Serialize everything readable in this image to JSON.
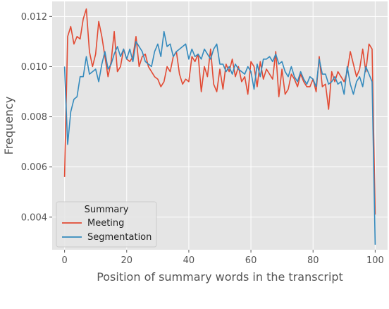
{
  "chart_data": {
    "type": "line",
    "xlabel": "Position of summary words in the transcript",
    "ylabel": "Frequency",
    "xlim": [
      -4,
      104
    ],
    "ylim": [
      0.0027,
      0.0126
    ],
    "xticks": [
      0,
      20,
      40,
      60,
      80,
      100
    ],
    "xtick_labels": [
      "0",
      "20",
      "40",
      "60",
      "80",
      "100"
    ],
    "yticks": [
      0.004,
      0.006,
      0.008,
      0.01,
      0.012
    ],
    "ytick_labels": [
      "0.004",
      "0.006",
      "0.008",
      "0.010",
      "0.012"
    ],
    "grid": true,
    "legend": {
      "title": "Summary",
      "position": "lower-left"
    },
    "background": "#e5e5e5",
    "grid_color": "#ffffff",
    "series": [
      {
        "name": "Meeting",
        "color": "#e24a33",
        "x": [
          0,
          1,
          2,
          3,
          4,
          5,
          6,
          7,
          8,
          9,
          10,
          11,
          12,
          13,
          14,
          15,
          16,
          17,
          18,
          19,
          20,
          21,
          22,
          23,
          24,
          25,
          26,
          27,
          28,
          29,
          30,
          31,
          32,
          33,
          34,
          35,
          36,
          37,
          38,
          39,
          40,
          41,
          42,
          43,
          44,
          45,
          46,
          47,
          48,
          49,
          50,
          51,
          52,
          53,
          54,
          55,
          56,
          57,
          58,
          59,
          60,
          61,
          62,
          63,
          64,
          65,
          66,
          67,
          68,
          69,
          70,
          71,
          72,
          73,
          74,
          75,
          76,
          77,
          78,
          79,
          80,
          81,
          82,
          83,
          84,
          85,
          86,
          87,
          88,
          89,
          90,
          91,
          92,
          93,
          94,
          95,
          96,
          97,
          98,
          99,
          100
        ],
        "values": [
          0.0056,
          0.0112,
          0.0116,
          0.0109,
          0.0112,
          0.0111,
          0.0119,
          0.0123,
          0.0106,
          0.01,
          0.0105,
          0.0118,
          0.0112,
          0.0104,
          0.0096,
          0.0102,
          0.0114,
          0.0098,
          0.01,
          0.0107,
          0.0103,
          0.0102,
          0.0104,
          0.0112,
          0.01,
          0.0104,
          0.0105,
          0.01,
          0.0098,
          0.0096,
          0.0095,
          0.0092,
          0.0094,
          0.01,
          0.0098,
          0.0104,
          0.0106,
          0.0097,
          0.0093,
          0.0095,
          0.0094,
          0.0104,
          0.0102,
          0.0105,
          0.009,
          0.01,
          0.0096,
          0.0107,
          0.0093,
          0.009,
          0.0099,
          0.0091,
          0.0101,
          0.0098,
          0.0103,
          0.0096,
          0.01,
          0.0094,
          0.0096,
          0.0089,
          0.0102,
          0.01,
          0.0092,
          0.0102,
          0.0095,
          0.0099,
          0.0097,
          0.0095,
          0.0106,
          0.0088,
          0.0099,
          0.0089,
          0.0091,
          0.0097,
          0.0095,
          0.0092,
          0.0097,
          0.0094,
          0.0092,
          0.0092,
          0.0095,
          0.009,
          0.0104,
          0.0092,
          0.0093,
          0.0083,
          0.0098,
          0.0094,
          0.0098,
          0.0096,
          0.0094,
          0.0098,
          0.0106,
          0.0101,
          0.0096,
          0.0099,
          0.0107,
          0.0098,
          0.0109,
          0.0107,
          0.0041
        ]
      },
      {
        "name": "Segmentation",
        "color": "#348abd",
        "x": [
          0,
          1,
          2,
          3,
          4,
          5,
          6,
          7,
          8,
          9,
          10,
          11,
          12,
          13,
          14,
          15,
          16,
          17,
          18,
          19,
          20,
          21,
          22,
          23,
          24,
          25,
          26,
          27,
          28,
          29,
          30,
          31,
          32,
          33,
          34,
          35,
          36,
          37,
          38,
          39,
          40,
          41,
          42,
          43,
          44,
          45,
          46,
          47,
          48,
          49,
          50,
          51,
          52,
          53,
          54,
          55,
          56,
          57,
          58,
          59,
          60,
          61,
          62,
          63,
          64,
          65,
          66,
          67,
          68,
          69,
          70,
          71,
          72,
          73,
          74,
          75,
          76,
          77,
          78,
          79,
          80,
          81,
          82,
          83,
          84,
          85,
          86,
          87,
          88,
          89,
          90,
          91,
          92,
          93,
          94,
          95,
          96,
          97,
          98,
          99,
          100
        ],
        "values": [
          0.01,
          0.0069,
          0.0082,
          0.0087,
          0.0088,
          0.0096,
          0.0096,
          0.0104,
          0.0097,
          0.0098,
          0.0099,
          0.0094,
          0.0101,
          0.0106,
          0.0099,
          0.0101,
          0.0105,
          0.0108,
          0.0104,
          0.0107,
          0.0103,
          0.0107,
          0.0102,
          0.011,
          0.0108,
          0.0106,
          0.0102,
          0.0101,
          0.01,
          0.0106,
          0.0109,
          0.0104,
          0.0114,
          0.0108,
          0.0109,
          0.0104,
          0.0106,
          0.0107,
          0.0108,
          0.0109,
          0.0103,
          0.0107,
          0.0104,
          0.0105,
          0.0103,
          0.0107,
          0.0105,
          0.0103,
          0.0107,
          0.0109,
          0.0101,
          0.0101,
          0.0098,
          0.01,
          0.0097,
          0.0101,
          0.0099,
          0.0098,
          0.0097,
          0.01,
          0.0098,
          0.0091,
          0.0101,
          0.0096,
          0.0103,
          0.0103,
          0.0104,
          0.0102,
          0.0105,
          0.0101,
          0.0102,
          0.0098,
          0.0096,
          0.01,
          0.0096,
          0.0094,
          0.0098,
          0.0095,
          0.0093,
          0.0096,
          0.0095,
          0.0092,
          0.0103,
          0.0097,
          0.0097,
          0.0093,
          0.0094,
          0.0096,
          0.0093,
          0.0094,
          0.0089,
          0.01,
          0.0093,
          0.0089,
          0.0094,
          0.0096,
          0.0092,
          0.01,
          0.0097,
          0.0094,
          0.0029
        ]
      }
    ]
  }
}
